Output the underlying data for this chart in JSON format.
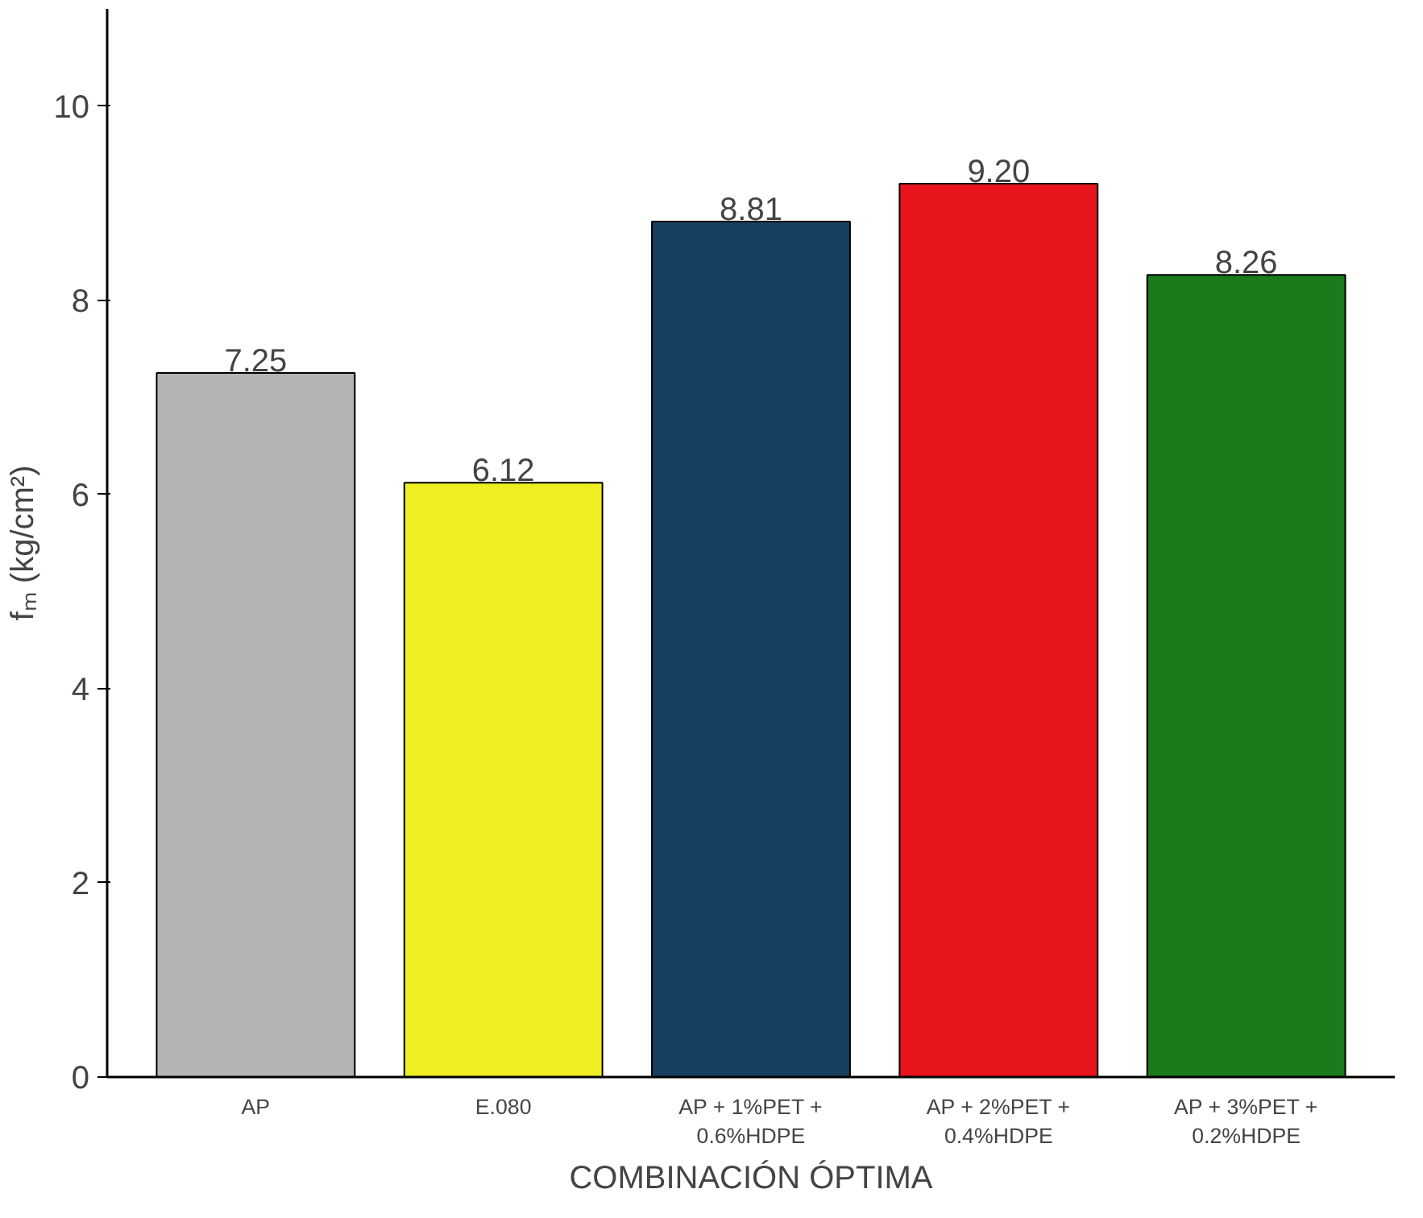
{
  "chart_data": {
    "type": "bar",
    "categories": [
      "AP",
      "E.080",
      "AP + 1%PET +\n0.6%HDPE",
      "AP + 2%PET +\n0.4%HDPE",
      "AP + 3%PET +\n0.2%HDPE"
    ],
    "values": [
      7.25,
      6.12,
      8.81,
      9.2,
      8.26
    ],
    "value_labels": [
      "7.25",
      "6.12",
      "8.81",
      "9.20",
      "8.26"
    ],
    "colors": [
      "#b4b4b4",
      "#eeee22",
      "#173f5f",
      "#e8141c",
      "#1b7a1b"
    ],
    "xlabel": "COMBINACIÓN ÓPTIMA",
    "ylabel": "fₘ (kg/cm²)",
    "ylim": [
      0,
      11
    ],
    "yticks": [
      0,
      2,
      4,
      6,
      8,
      10
    ],
    "grid": false
  }
}
